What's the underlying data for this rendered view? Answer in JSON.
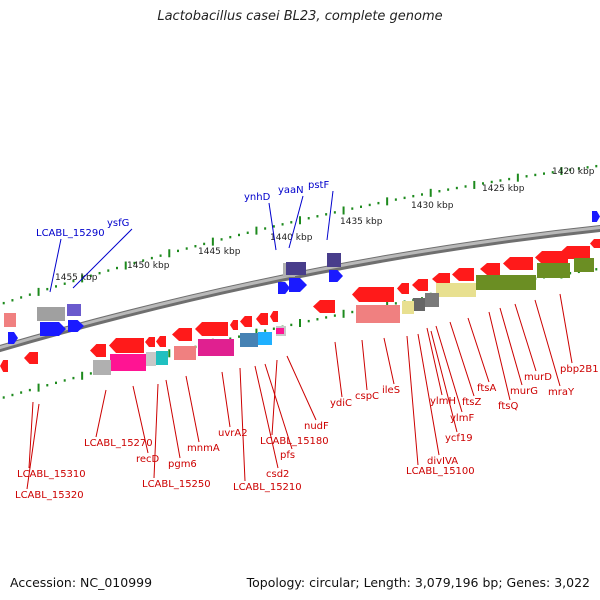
{
  "title": "Lactobacillus casei BL23, complete genome",
  "footer": {
    "accession": "Accession: NC_010999",
    "stats": "Topology: circular; Length: 3,079,196 bp; Genes: 3,022"
  },
  "colors": {
    "backbone": "#8a8a8a",
    "forward_gene": "#1a1aff",
    "reverse_gene": "#ff1a1a",
    "forward_label": "#0000cc",
    "reverse_label": "#cc0000",
    "tick": "#1d8a1d"
  },
  "scale_labels": [
    "1420 kbp",
    "1425 kbp",
    "1430 kbp",
    "1435 kbp",
    "1440 kbp",
    "1445 kbp",
    "1450 kbp",
    "1455 kbp"
  ],
  "forward_labels": [
    "LCABL_15290",
    "ysfG",
    "ynhD",
    "yaaN",
    "pstF"
  ],
  "reverse_labels": [
    "pbp2B1",
    "mraY",
    "murD",
    "murG",
    "ftsQ",
    "ftsA",
    "ftsZ",
    "ylmF",
    "ylmH",
    "ycf19",
    "divIVA",
    "LCABL_15100",
    "ileS",
    "cspC",
    "ydiC",
    "nudF",
    "LCABL_15180",
    "pfs",
    "csd2",
    "LCABL_15210",
    "uvrA2",
    "mnmA",
    "pgm6",
    "LCABL_15250",
    "recD",
    "LCABL_15270",
    "LCABL_15310",
    "LCABL_15320"
  ]
}
